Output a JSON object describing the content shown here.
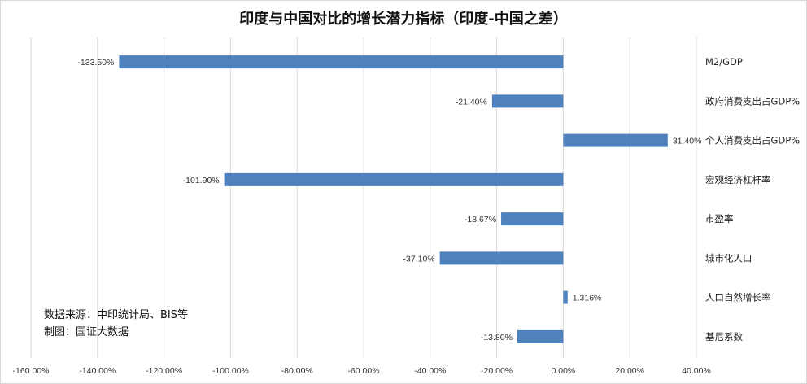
{
  "source_note": "数据来源：中印统计局、BIS等",
  "made_by_note": "制图：国证大数据",
  "chart_data": {
    "type": "bar",
    "orientation": "horizontal",
    "title": "印度与中国对比的增长潜力指标（印度-中国之差）",
    "categories": [
      "M2/GDP",
      "政府消费支出占GDP%",
      "个人消费支出占GDP%",
      "宏观经济杠杆率",
      "市盈率",
      "城市化人口",
      "人口自然增长率",
      "基尼系数"
    ],
    "values": [
      -133.5,
      -21.4,
      31.4,
      -101.9,
      -18.67,
      -37.1,
      1.316,
      -13.8
    ],
    "data_labels": [
      "-133.50%",
      "-21.40%",
      "31.40%",
      "-101.90%",
      "-18.67%",
      "-37.10%",
      "1.316%",
      "-13.80%"
    ],
    "xlim": [
      -160,
      40
    ],
    "xticks": [
      -160,
      -140,
      -120,
      -100,
      -80,
      -60,
      -40,
      -20,
      0,
      20,
      40
    ],
    "xtick_labels": [
      "-160.00%",
      "-140.00%",
      "-120.00%",
      "-100.00%",
      "-80.00%",
      "-60.00%",
      "-40.00%",
      "-20.00%",
      "0.00%",
      "20.00%",
      "40.00%"
    ],
    "xlabel": "",
    "ylabel": "",
    "grid": "vertical",
    "legend": "none",
    "bar_color": "#4f81bd",
    "grid_color": "#d9d9d9"
  }
}
